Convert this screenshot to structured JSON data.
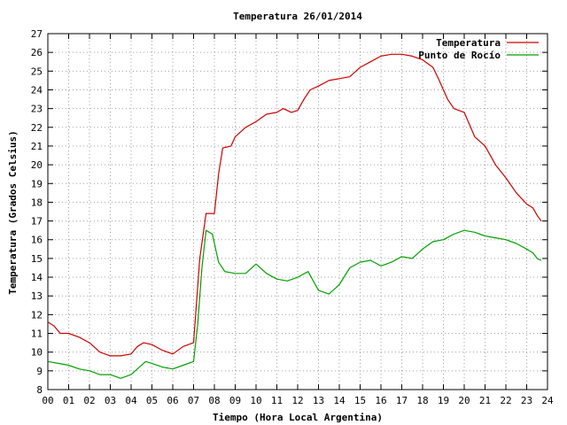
{
  "chart_data": {
    "type": "line",
    "title": "Temperatura 26/01/2014",
    "xlabel": "Tiempo (Hora Local Argentina)",
    "ylabel": "Temperatura (Grados Celsius)",
    "xlim": [
      0,
      24
    ],
    "ylim": [
      8,
      27
    ],
    "x_ticks": [
      "00",
      "01",
      "02",
      "03",
      "04",
      "05",
      "06",
      "07",
      "08",
      "09",
      "10",
      "11",
      "12",
      "13",
      "14",
      "15",
      "16",
      "17",
      "18",
      "19",
      "20",
      "21",
      "22",
      "23",
      "24"
    ],
    "y_ticks": [
      8,
      9,
      10,
      11,
      12,
      13,
      14,
      15,
      16,
      17,
      18,
      19,
      20,
      21,
      22,
      23,
      24,
      25,
      26,
      27
    ],
    "grid": true,
    "legend_position": "top-right",
    "series": [
      {
        "name": "Temperatura",
        "color": "#cc0000",
        "points": [
          [
            0,
            11.6
          ],
          [
            0.3,
            11.4
          ],
          [
            0.6,
            11.0
          ],
          [
            1.0,
            11.0
          ],
          [
            1.5,
            10.8
          ],
          [
            2.0,
            10.5
          ],
          [
            2.5,
            10.0
          ],
          [
            3.0,
            9.8
          ],
          [
            3.5,
            9.8
          ],
          [
            4.0,
            9.9
          ],
          [
            4.3,
            10.3
          ],
          [
            4.6,
            10.5
          ],
          [
            5.0,
            10.4
          ],
          [
            5.5,
            10.1
          ],
          [
            6.0,
            9.9
          ],
          [
            6.5,
            10.3
          ],
          [
            7.0,
            10.5
          ],
          [
            7.3,
            15.0
          ],
          [
            7.6,
            17.4
          ],
          [
            8.0,
            17.4
          ],
          [
            8.2,
            19.5
          ],
          [
            8.4,
            20.9
          ],
          [
            8.8,
            21.0
          ],
          [
            9.0,
            21.5
          ],
          [
            9.5,
            22.0
          ],
          [
            10.0,
            22.3
          ],
          [
            10.5,
            22.7
          ],
          [
            11.0,
            22.8
          ],
          [
            11.3,
            23.0
          ],
          [
            11.7,
            22.8
          ],
          [
            12.0,
            22.9
          ],
          [
            12.3,
            23.5
          ],
          [
            12.6,
            24.0
          ],
          [
            13.0,
            24.2
          ],
          [
            13.5,
            24.5
          ],
          [
            14.0,
            24.6
          ],
          [
            14.5,
            24.7
          ],
          [
            15.0,
            25.2
          ],
          [
            15.5,
            25.5
          ],
          [
            16.0,
            25.8
          ],
          [
            16.5,
            25.9
          ],
          [
            17.0,
            25.9
          ],
          [
            17.5,
            25.8
          ],
          [
            18.0,
            25.6
          ],
          [
            18.5,
            25.2
          ],
          [
            18.8,
            24.5
          ],
          [
            19.2,
            23.5
          ],
          [
            19.5,
            23.0
          ],
          [
            20.0,
            22.8
          ],
          [
            20.5,
            21.5
          ],
          [
            21.0,
            21.0
          ],
          [
            21.5,
            20.0
          ],
          [
            22.0,
            19.3
          ],
          [
            22.5,
            18.5
          ],
          [
            23.0,
            17.9
          ],
          [
            23.3,
            17.7
          ],
          [
            23.5,
            17.3
          ],
          [
            23.7,
            17.0
          ]
        ]
      },
      {
        "name": "Punto de Rocío",
        "color": "#00a000",
        "points": [
          [
            0,
            9.5
          ],
          [
            0.5,
            9.4
          ],
          [
            1.0,
            9.3
          ],
          [
            1.5,
            9.1
          ],
          [
            2.0,
            9.0
          ],
          [
            2.5,
            8.8
          ],
          [
            3.0,
            8.8
          ],
          [
            3.5,
            8.6
          ],
          [
            4.0,
            8.8
          ],
          [
            4.4,
            9.2
          ],
          [
            4.7,
            9.5
          ],
          [
            5.0,
            9.4
          ],
          [
            5.5,
            9.2
          ],
          [
            6.0,
            9.1
          ],
          [
            6.5,
            9.3
          ],
          [
            7.0,
            9.5
          ],
          [
            7.2,
            11.5
          ],
          [
            7.4,
            14.5
          ],
          [
            7.6,
            16.5
          ],
          [
            7.9,
            16.3
          ],
          [
            8.2,
            14.8
          ],
          [
            8.5,
            14.3
          ],
          [
            9.0,
            14.2
          ],
          [
            9.5,
            14.2
          ],
          [
            10.0,
            14.7
          ],
          [
            10.5,
            14.2
          ],
          [
            11.0,
            13.9
          ],
          [
            11.5,
            13.8
          ],
          [
            12.0,
            14.0
          ],
          [
            12.5,
            14.3
          ],
          [
            13.0,
            13.3
          ],
          [
            13.5,
            13.1
          ],
          [
            14.0,
            13.6
          ],
          [
            14.5,
            14.5
          ],
          [
            15.0,
            14.8
          ],
          [
            15.5,
            14.9
          ],
          [
            16.0,
            14.6
          ],
          [
            16.5,
            14.8
          ],
          [
            17.0,
            15.1
          ],
          [
            17.5,
            15.0
          ],
          [
            18.0,
            15.5
          ],
          [
            18.5,
            15.9
          ],
          [
            19.0,
            16.0
          ],
          [
            19.5,
            16.3
          ],
          [
            20.0,
            16.5
          ],
          [
            20.5,
            16.4
          ],
          [
            21.0,
            16.2
          ],
          [
            21.5,
            16.1
          ],
          [
            22.0,
            16.0
          ],
          [
            22.5,
            15.8
          ],
          [
            23.0,
            15.5
          ],
          [
            23.3,
            15.3
          ],
          [
            23.5,
            15.0
          ],
          [
            23.7,
            14.9
          ]
        ]
      }
    ]
  }
}
